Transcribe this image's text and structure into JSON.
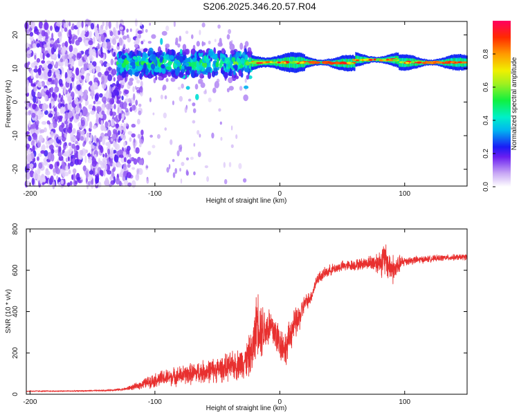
{
  "title": "S206.2025.346.20.57.R04",
  "chart_data": [
    {
      "type": "heatmap",
      "name": "spectrogram",
      "xlabel": "Height of straight line (km)",
      "ylabel": "Frequency (Hz)",
      "xlim": [
        -203,
        150
      ],
      "ylim": [
        -25,
        24
      ],
      "xticks": [
        -200,
        -100,
        0,
        100
      ],
      "yticks": [
        -20,
        -10,
        0,
        10,
        20
      ],
      "colorbar": {
        "label": "Normalized spectral amplitude",
        "ticks": [
          "0.0",
          "0.2",
          "0.4",
          "0.6",
          "0.8"
        ],
        "range": [
          0,
          1
        ]
      },
      "features": [
        {
          "name": "noise-field",
          "x_range": [
            -203,
            -122
          ],
          "y_range": [
            -25,
            24
          ],
          "amplitude": 0.1
        },
        {
          "name": "signal-onset",
          "x_range": [
            -130,
            -23
          ],
          "center_hz": 11.5,
          "spread_hz": 6,
          "amplitude": 0.35
        },
        {
          "name": "stable-line",
          "x_range": [
            -23,
            150
          ],
          "center_hz": 11.8,
          "amplitude": 0.9
        }
      ]
    },
    {
      "type": "line",
      "name": "snr",
      "xlabel": "Height of straight line (km)",
      "ylabel": "SNR (10 * v/v)",
      "xlim": [
        -203,
        150
      ],
      "ylim": [
        0,
        800
      ],
      "xticks": [
        -200,
        -100,
        0,
        100
      ],
      "yticks": [
        0,
        200,
        400,
        600,
        800
      ],
      "series": [
        {
          "name": "SNR",
          "color": "#e8302f",
          "x": [
            -203,
            -180,
            -160,
            -140,
            -125,
            -115,
            -105,
            -95,
            -85,
            -75,
            -65,
            -55,
            -45,
            -35,
            -28,
            -22,
            -18,
            -16,
            -12,
            -8,
            -4,
            0,
            5,
            10,
            15,
            20,
            25,
            30,
            40,
            50,
            60,
            70,
            80,
            84,
            88,
            92,
            96,
            100,
            110,
            120,
            130,
            140,
            150
          ],
          "y": [
            15,
            15,
            16,
            18,
            24,
            38,
            60,
            75,
            85,
            95,
            105,
            115,
            125,
            140,
            160,
            200,
            370,
            330,
            310,
            330,
            300,
            250,
            220,
            320,
            360,
            440,
            470,
            560,
            600,
            620,
            625,
            635,
            640,
            650,
            620,
            600,
            630,
            645,
            650,
            655,
            660,
            662,
            665
          ],
          "noise": [
            3,
            3,
            3,
            4,
            6,
            15,
            28,
            38,
            42,
            48,
            52,
            56,
            62,
            70,
            80,
            110,
            150,
            160,
            110,
            100,
            95,
            85,
            80,
            80,
            70,
            40,
            30,
            28,
            25,
            24,
            26,
            28,
            60,
            90,
            70,
            70,
            40,
            22,
            18,
            15,
            14,
            14,
            14
          ]
        }
      ]
    }
  ]
}
